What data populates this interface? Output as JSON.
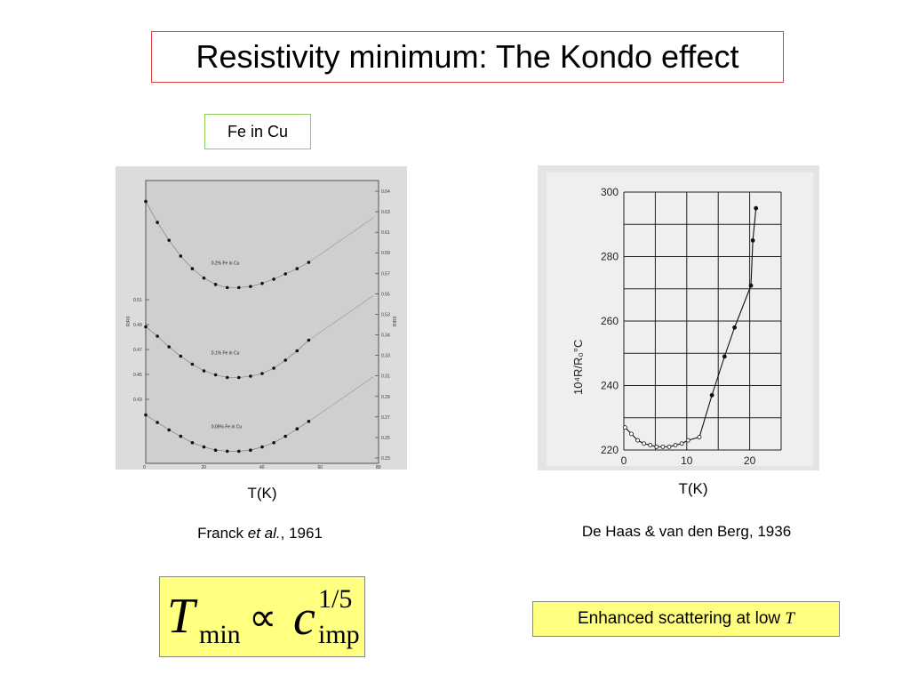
{
  "slide": {
    "title": "Resistivity minimum:  The Kondo effect",
    "label": "Fe in Cu",
    "left_xlabel": "T(K)",
    "right_xlabel": "T(K)",
    "left_citation_pre": "Franck ",
    "left_citation_em": "et al.",
    "left_citation_post": ", 1961",
    "right_citation": "De Haas & van den Berg, 1936",
    "formula": {
      "T": "T",
      "min": "min",
      "prop": "∝",
      "c": "c",
      "exp": "1/5",
      "imp": "imp"
    },
    "note_text": "Enhanced scattering at low ",
    "note_var": "T"
  },
  "chart_data": [
    {
      "type": "scatter",
      "title": "",
      "xlabel": "T(K)",
      "ylabel": "R/R0",
      "xlim": [
        0,
        80
      ],
      "series": [
        {
          "name": "0.2% Fe in Cu",
          "x": [
            0,
            4,
            8,
            12,
            16,
            20,
            24,
            28,
            32,
            36,
            40,
            44,
            48,
            52,
            56
          ],
          "y": [
            0.632,
            0.612,
            0.595,
            0.58,
            0.568,
            0.559,
            0.553,
            0.55,
            0.55,
            0.551,
            0.554,
            0.558,
            0.563,
            0.568,
            0.574
          ]
        },
        {
          "name": "0.1% Fe in Cu",
          "x": [
            0,
            4,
            8,
            12,
            16,
            20,
            24,
            28,
            32,
            36,
            40,
            44,
            48,
            52,
            56
          ],
          "y": [
            0.343,
            0.336,
            0.328,
            0.321,
            0.315,
            0.31,
            0.307,
            0.305,
            0.305,
            0.306,
            0.308,
            0.312,
            0.318,
            0.325,
            0.333
          ]
        },
        {
          "name": "0.05% Fe in Cu",
          "x": [
            0,
            4,
            8,
            12,
            16,
            20,
            24,
            28,
            32,
            36,
            40,
            44,
            48,
            52,
            56
          ],
          "y": [
            0.272,
            0.265,
            0.258,
            0.252,
            0.246,
            0.242,
            0.239,
            0.238,
            0.238,
            0.239,
            0.242,
            0.246,
            0.252,
            0.259,
            0.266
          ]
        }
      ],
      "left_ticks": [
        "0.51",
        "0.49",
        "0.47",
        "0.45",
        "0.43"
      ],
      "right_ticks": [
        "0.64",
        "0.63",
        "0.61",
        "0.59",
        "0.57",
        "0.55",
        "0.53",
        "0.34",
        "0.33",
        "0.31",
        "0.29",
        "0.27",
        "0.25",
        "0.23"
      ],
      "x_ticks": [
        "0",
        "20",
        "40",
        "60",
        "80"
      ]
    },
    {
      "type": "line",
      "title": "",
      "xlabel": "T(K)",
      "ylabel": "10⁴R/R₀°C",
      "xlim": [
        0,
        25
      ],
      "ylim": [
        220,
        300
      ],
      "x_ticks": [
        0,
        10,
        20
      ],
      "y_ticks": [
        220,
        240,
        260,
        280,
        300
      ],
      "series": [
        {
          "name": "",
          "x": [
            0.2,
            1.2,
            2.2,
            3.2,
            4.2,
            5.2,
            6.2,
            7.2,
            8.2,
            9.2,
            10.2,
            12.0,
            14.0,
            16.0,
            17.6,
            20.2
          ],
          "y": [
            227,
            225,
            223,
            222,
            221.5,
            221,
            221,
            221,
            221.5,
            222,
            223,
            224,
            237,
            249,
            258,
            271
          ]
        },
        {
          "name": "",
          "x": [
            20.5,
            21.0
          ],
          "y": [
            285,
            295
          ]
        }
      ]
    }
  ]
}
